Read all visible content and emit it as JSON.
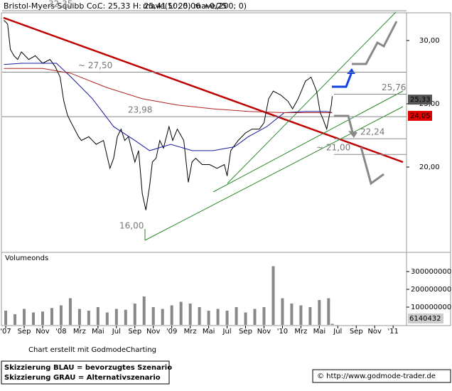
{
  "chart_data": [
    {
      "type": "line",
      "title": "Bristol-Myers Squibb Co.",
      "quote": "C: 25,33 H: 25,41 L: 25,06 +0,25",
      "legend_color": "#e0a800",
      "xlim": [
        -0.39,
        43.45
      ],
      "ylim": [
        13.43,
        32.19
      ],
      "xticks": [
        {
          "value": 0,
          "label": "'07"
        },
        {
          "value": 2,
          "label": "Sep"
        },
        {
          "value": 4,
          "label": "Nov"
        },
        {
          "value": 6,
          "label": "'08"
        },
        {
          "value": 8,
          "label": "Mrz"
        },
        {
          "value": 10,
          "label": "Mai"
        },
        {
          "value": 12,
          "label": "Jul"
        },
        {
          "value": 14,
          "label": "Sep"
        },
        {
          "value": 16,
          "label": "Nov"
        },
        {
          "value": 18,
          "label": "'09"
        },
        {
          "value": 20,
          "label": "Mrz"
        },
        {
          "value": 22,
          "label": "Mai"
        },
        {
          "value": 24,
          "label": "Jul"
        },
        {
          "value": 26,
          "label": "Sep"
        },
        {
          "value": 28,
          "label": "Nov"
        },
        {
          "value": 30,
          "label": "'10"
        },
        {
          "value": 32,
          "label": "Mrz"
        },
        {
          "value": 34,
          "label": "Mai"
        },
        {
          "value": 36,
          "label": "Jul"
        },
        {
          "value": 38,
          "label": "Sep"
        },
        {
          "value": 40,
          "label": "Nov"
        },
        {
          "value": 42,
          "label": "'11"
        }
      ],
      "yticks": [
        {
          "value": 20,
          "label": "20,00"
        },
        {
          "value": 25,
          "label": "25,00"
        },
        {
          "value": 30,
          "label": "30,00"
        }
      ],
      "series": [
        {
          "color": "#000000",
          "x": [
            -0.2,
            0.2,
            0.5,
            0.9,
            1.3,
            1.7,
            2.5,
            3.2,
            4.0,
            4.8,
            5.4,
            5.9,
            6.3,
            6.7,
            7.1,
            7.9,
            8.2,
            9.0,
            9.8,
            10.6,
            11.3,
            11.7,
            12.1,
            12.5,
            12.9,
            13.3,
            14.0,
            14.4,
            14.8,
            15.2,
            15.6,
            15.9,
            16.3,
            16.7,
            17.1,
            17.7,
            18.1,
            18.6,
            19.3,
            19.8,
            20.2,
            20.6,
            21.3,
            22.1,
            22.9,
            23.7,
            24.0,
            24.4,
            25.2,
            26.0,
            26.7,
            27.5,
            28.0,
            28.5,
            29.0,
            29.8,
            30.6,
            31.1,
            31.7,
            32.5,
            33.1,
            33.7,
            34.1,
            34.4,
            34.8,
            35.3,
            35.4
          ],
          "values": [
            31.6,
            31.3,
            29.3,
            28.8,
            28.5,
            29.1,
            28.5,
            28.8,
            28.2,
            28.5,
            27.9,
            27.1,
            25.2,
            24.1,
            23.5,
            22.4,
            22.1,
            22.4,
            21.8,
            22.1,
            19.9,
            20.7,
            22.4,
            23.0,
            22.1,
            22.4,
            20.4,
            21.3,
            17.9,
            16.6,
            18.5,
            20.4,
            20.7,
            22.1,
            21.5,
            23.2,
            22.1,
            23.0,
            22.1,
            18.8,
            20.4,
            20.7,
            20.2,
            20.2,
            19.9,
            20.2,
            19.3,
            21.3,
            22.1,
            22.7,
            23.0,
            23.0,
            23.5,
            25.4,
            26.0,
            25.7,
            25.2,
            24.6,
            25.4,
            26.8,
            27.1,
            26.0,
            24.3,
            23.8,
            23.0,
            24.9,
            25.6
          ]
        },
        {
          "name": "mave(50; 0)",
          "color": "#1a1aa0",
          "x": [
            -0.2,
            1.7,
            5.5,
            7.1,
            9.4,
            11.7,
            14.0,
            15.6,
            17.9,
            20.2,
            22.5,
            24.8,
            26.3,
            28.3,
            30.2,
            32.5,
            34.8,
            35.4
          ],
          "values": [
            28.1,
            28.2,
            28.2,
            27.1,
            25.4,
            23.2,
            22.1,
            21.3,
            21.8,
            21.3,
            21.3,
            21.6,
            22.4,
            23.2,
            24.3,
            24.4,
            24.4,
            24.3
          ]
        },
        {
          "name": "mave(200; 0)",
          "color": "#b02020",
          "x": [
            -0.2,
            4.0,
            7.1,
            10.9,
            14.8,
            18.6,
            22.5,
            26.3,
            30.2,
            35.4
          ],
          "values": [
            27.8,
            27.8,
            27.4,
            26.3,
            25.4,
            24.9,
            24.6,
            24.4,
            24.3,
            24.3
          ]
        }
      ],
      "levels": [
        {
          "label": "32,35",
          "value": 32.35
        },
        {
          "label": "~ 27,50",
          "value": 27.5
        },
        {
          "label": "25,76",
          "value": 25.76
        },
        {
          "label": "23,98",
          "value": 23.98
        },
        {
          "label": "22,24",
          "value": 22.24
        },
        {
          "label": "~ 21,00",
          "value": 21
        },
        {
          "label": "16,00",
          "value": 16
        }
      ],
      "last_price": {
        "label": "25,33",
        "value": 25.33,
        "color": "#555555"
      },
      "last_mave200": {
        "label": "24,05",
        "value": 24.05,
        "color": "#e00000"
      }
    },
    {
      "type": "bar",
      "title": "Volumeonds",
      "color": "#888888",
      "ylim": [
        0,
        396000000
      ],
      "yticks": [
        100000000,
        200000000,
        300000000
      ],
      "x": [
        0,
        1,
        2,
        3,
        4,
        5,
        6,
        7,
        8,
        9,
        10,
        11,
        12,
        13,
        14,
        15,
        16,
        17,
        18,
        19,
        20,
        21,
        22,
        23,
        24,
        25,
        26,
        27,
        28,
        29,
        30,
        31,
        32,
        33,
        34,
        35,
        35.4
      ],
      "values": [
        80000000,
        60000000,
        90000000,
        70000000,
        75000000,
        95000000,
        110000000,
        150000000,
        90000000,
        80000000,
        100000000,
        70000000,
        90000000,
        85000000,
        120000000,
        160000000,
        100000000,
        90000000,
        110000000,
        130000000,
        120000000,
        100000000,
        80000000,
        90000000,
        80000000,
        100000000,
        70000000,
        90000000,
        100000000,
        330000000,
        150000000,
        120000000,
        110000000,
        100000000,
        140000000,
        150000000,
        6140432
      ]
    }
  ],
  "footer": {
    "credit": "Chart erstellt mit GodmodeCharting",
    "blue": "Skizzierung BLAU = bevorzugtes Szenario",
    "grey": "Skizzierung GRAU = Alternativszenario",
    "url": "© http://www.godmode-trader.de"
  }
}
